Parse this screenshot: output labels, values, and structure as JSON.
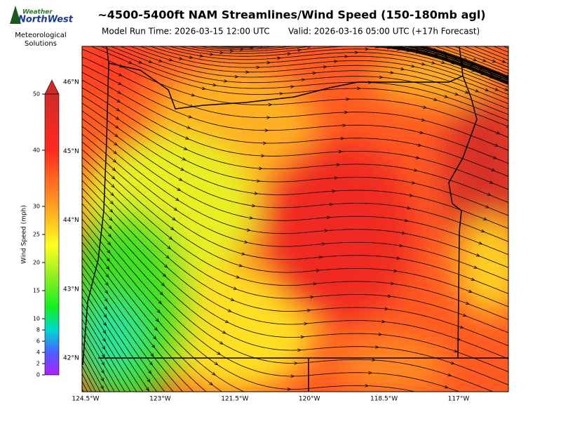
{
  "logo": {
    "line1": "Weather",
    "line2": "NorthWest",
    "caption1": "Meteorological",
    "caption2": "Solutions"
  },
  "header": {
    "title": "~4500-5400ft NAM Streamlines/Wind Speed (150-180mb agl)",
    "model_run": "Model Run Time: 2026-03-15 12:00 UTC",
    "valid": "Valid: 2026-03-16 05:00 UTC  (+17h Forecast)"
  },
  "colorbar": {
    "label": "Wind Speed (mph)",
    "range": [
      0,
      50
    ],
    "ticks": [
      0,
      2,
      4,
      6,
      8,
      10,
      15,
      20,
      25,
      30,
      40,
      50
    ]
  },
  "map": {
    "latitudes": [
      {
        "value": 46,
        "label": "46°N"
      },
      {
        "value": 45,
        "label": "45°N"
      },
      {
        "value": 44,
        "label": "44°N"
      },
      {
        "value": 43,
        "label": "43°N"
      },
      {
        "value": 42,
        "label": "42°N"
      }
    ],
    "longitudes": [
      {
        "value": -124.5,
        "label": "124.5°W"
      },
      {
        "value": -123,
        "label": "123°W"
      },
      {
        "value": -121.5,
        "label": "121.5°W"
      },
      {
        "value": -120,
        "label": "120°W"
      },
      {
        "value": -118.5,
        "label": "118.5°W"
      },
      {
        "value": -117,
        "label": "117°W"
      }
    ]
  }
}
